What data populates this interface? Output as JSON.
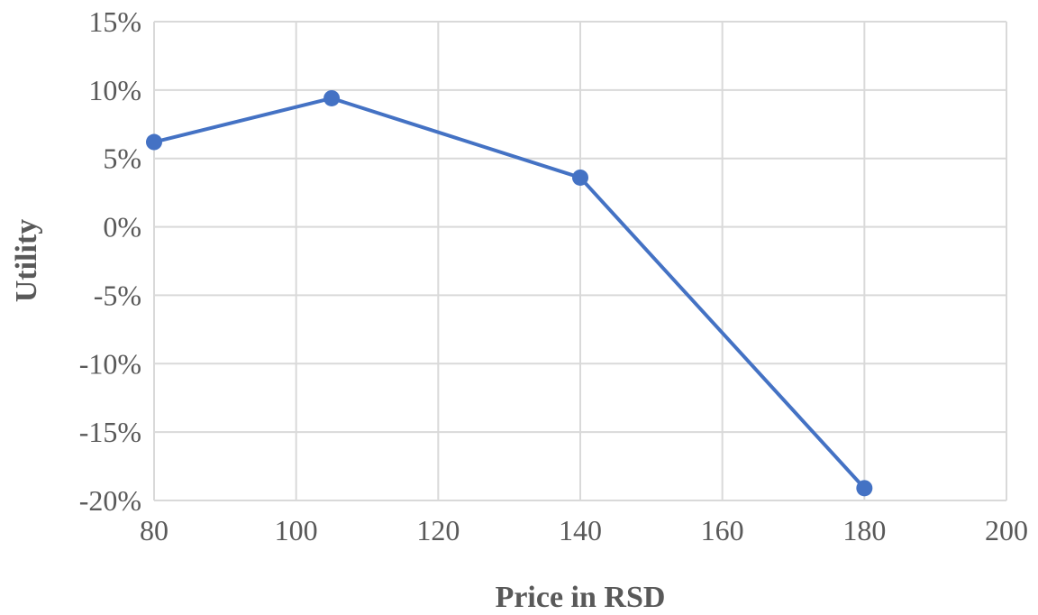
{
  "colors": {
    "series": "#4472c4",
    "grid": "#d9d9d9",
    "text": "#595959"
  },
  "chart_data": {
    "type": "scatter",
    "title": "",
    "xlabel": "Price in RSD",
    "ylabel": "Utility",
    "xlim": [
      80,
      200
    ],
    "ylim": [
      -0.2,
      0.15
    ],
    "x_ticks": [
      80,
      100,
      120,
      140,
      160,
      180,
      200
    ],
    "x_tick_labels": [
      "80",
      "100",
      "120",
      "140",
      "160",
      "180",
      "200"
    ],
    "y_ticks": [
      0.15,
      0.1,
      0.05,
      0.0,
      -0.05,
      -0.1,
      -0.15,
      -0.2
    ],
    "y_tick_labels": [
      "15%",
      "10%",
      "5%",
      "0%",
      "-5%",
      "-10%",
      "-15%",
      "-20%"
    ],
    "grid": true,
    "legend": "none",
    "markers": true,
    "lines": true,
    "series": [
      {
        "x": [
          80,
          105,
          140,
          180
        ],
        "y": [
          0.062,
          0.094,
          0.036,
          -0.191
        ]
      }
    ]
  }
}
